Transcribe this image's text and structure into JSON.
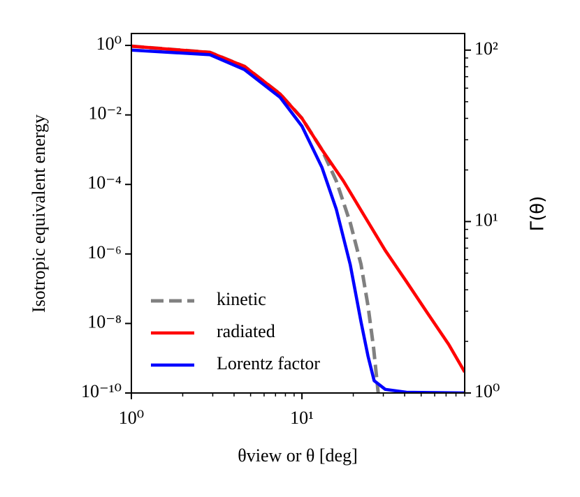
{
  "chart_data": {
    "type": "line",
    "xlabel": "θview or θ [deg]",
    "ylabel": "Isotropic equivalent energy",
    "y2label": "Γ(θ)",
    "xscale": "log",
    "yscale": "log",
    "y2scale": "log",
    "xlim": [
      1,
      90
    ],
    "ylim": [
      1e-10,
      2.2
    ],
    "y2lim": [
      1,
      125
    ],
    "xticks": [
      {
        "value": 1,
        "label": "10⁰"
      },
      {
        "value": 10,
        "label": "10¹"
      }
    ],
    "xticks_minor": [
      2,
      3,
      4,
      5,
      6,
      7,
      8,
      9,
      20,
      30,
      40,
      50,
      60,
      70,
      80,
      90
    ],
    "yticks": [
      {
        "value": 1,
        "label": "10⁰"
      },
      {
        "value": 0.01,
        "label": "10⁻²"
      },
      {
        "value": 0.0001,
        "label": "10⁻⁴"
      },
      {
        "value": 1e-06,
        "label": "10⁻⁶"
      },
      {
        "value": 1e-08,
        "label": "10⁻⁸"
      },
      {
        "value": 1e-10,
        "label": "10⁻¹⁰"
      }
    ],
    "y2ticks": [
      {
        "value": 1,
        "label": "10⁰"
      },
      {
        "value": 10,
        "label": "10¹"
      },
      {
        "value": 100,
        "label": "10²"
      }
    ],
    "y2ticks_minor": [
      2,
      3,
      4,
      5,
      6,
      7,
      8,
      9,
      20,
      30,
      40,
      50,
      60,
      70,
      80,
      90
    ],
    "legend": "lower left",
    "series": [
      {
        "name": "kinetic",
        "color": "#808080",
        "dash": true,
        "x": [
          1,
          2.89,
          4.6,
          7.45,
          10,
          13.1,
          15.9,
          19.2,
          22.2,
          24.4,
          26.3,
          28
        ],
        "values": [
          0.95,
          0.63,
          0.25,
          0.04,
          0.008,
          0.001,
          0.000126,
          7.9e-06,
          5e-07,
          3.2e-08,
          2e-09,
          1e-10
        ]
      },
      {
        "name": "radiated",
        "color": "#ff0000",
        "x": [
          1,
          2.89,
          4.6,
          7.45,
          10,
          13.1,
          17.5,
          23.2,
          30.8,
          41,
          54.4,
          72.5,
          90
        ],
        "values": [
          0.95,
          0.63,
          0.25,
          0.04,
          0.008,
          0.001,
          0.000126,
          1.26e-05,
          1.26e-06,
          1.6e-07,
          2e-08,
          2.5e-09,
          4e-10
        ]
      },
      {
        "name": "Lorentz factor",
        "color": "#0000ff",
        "axis": "y2",
        "x": [
          1,
          2.89,
          4.6,
          7.45,
          10,
          13.1,
          15.9,
          19.2,
          22.2,
          24.4,
          26.5,
          30.8,
          41,
          90
        ],
        "values": [
          100,
          94,
          77,
          53,
          36,
          20.7,
          11.8,
          5.6,
          2.6,
          1.64,
          1.18,
          1.05,
          1.01,
          1
        ]
      }
    ]
  }
}
